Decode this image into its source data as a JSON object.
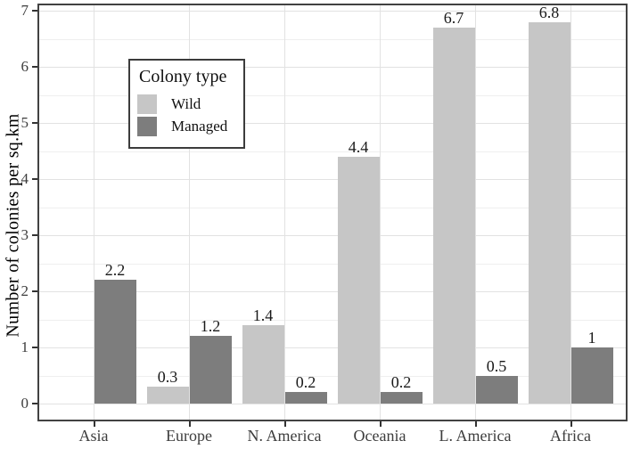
{
  "chart_data": {
    "type": "bar",
    "title": "",
    "ylabel": "Number of colonies per sq.km",
    "xlabel": "",
    "ylim": [
      0,
      7
    ],
    "yticks": [
      0,
      1,
      2,
      3,
      4,
      5,
      6,
      7
    ],
    "y_minor_step": 0.5,
    "grid": "horizontal major+minor gridlines; vertical gridlines at each category",
    "legend_position": "inside top-left",
    "categories": [
      "Asia",
      "Europe",
      "N. America",
      "Oceania",
      "L. America",
      "Africa"
    ],
    "series": [
      {
        "name": "Wild",
        "color": "#c6c6c6",
        "values": [
          null,
          0.3,
          1.4,
          4.4,
          6.7,
          6.8
        ],
        "value_labels": [
          "",
          "0.3",
          "1.4",
          "4.4",
          "6.7",
          "6.8"
        ]
      },
      {
        "name": "Managed",
        "color": "#7d7d7d",
        "values": [
          2.2,
          1.2,
          0.2,
          0.2,
          0.5,
          1
        ],
        "value_labels": [
          "2.2",
          "1.2",
          "0.2",
          "0.2",
          "0.5",
          "1"
        ]
      }
    ],
    "legend": {
      "title": "Colony type",
      "items": [
        {
          "label": "Wild",
          "color": "#c6c6c6"
        },
        {
          "label": "Managed",
          "color": "#7d7d7d"
        }
      ]
    }
  },
  "colors": {
    "wild_bar": "#c6c6c6",
    "managed_bar": "#7d7d7d",
    "panel_border": "#424242",
    "grid_major": "#e2e2e2",
    "grid_minor": "#efefef",
    "axis_text": "#3d3d3d",
    "value_label_text": "#1a1a1a",
    "background": "#ffffff"
  }
}
